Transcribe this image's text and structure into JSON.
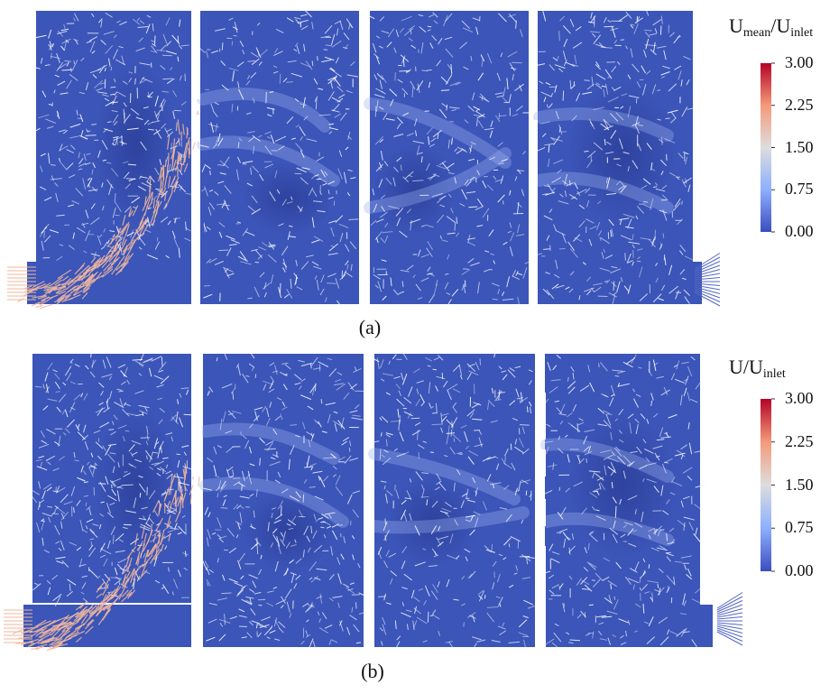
{
  "panels": [
    {
      "caption": "(a)",
      "colorbar": {
        "title_main": "U",
        "title_sub1": "mean",
        "title_sep": "/U",
        "title_sub2": "inlet",
        "ticks": [
          "3.00",
          "2.25",
          "1.50",
          "0.75",
          "0.00"
        ],
        "min": 0.0,
        "max": 3.0
      }
    },
    {
      "caption": "(b)",
      "colorbar": {
        "title_main": "U",
        "title_sub1": "",
        "title_sep": "/U",
        "title_sub2": "inlet",
        "ticks": [
          "3.00",
          "2.25",
          "1.50",
          "0.75",
          "0.00"
        ],
        "min": 0.0,
        "max": 3.0
      }
    }
  ],
  "colors": {
    "field": "#3b55b8",
    "field_dark": "#2c3f99",
    "glyph": "#f3f6ff",
    "glyph_hot": "#f1b79d",
    "wall": "#ffffff",
    "colormap": [
      "#3b4cc0",
      "#8db0fe",
      "#dddddd",
      "#f49a7b",
      "#b40426"
    ]
  }
}
